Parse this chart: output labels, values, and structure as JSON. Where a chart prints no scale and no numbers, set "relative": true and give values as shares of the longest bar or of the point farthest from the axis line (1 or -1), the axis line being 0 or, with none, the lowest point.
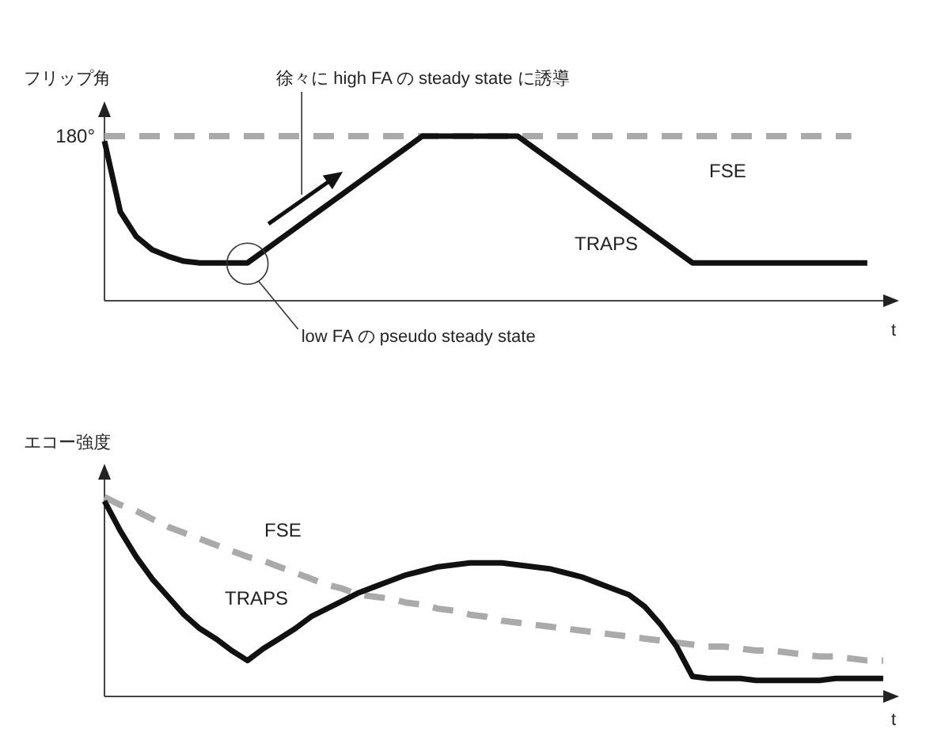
{
  "chart_data": [
    {
      "type": "line",
      "relative": true,
      "ylabel": "フリップ角",
      "xlabel": "t",
      "marker": "none",
      "categories": [
        null,
        null,
        null,
        null,
        null,
        null,
        null,
        null,
        null,
        null,
        null,
        null,
        null,
        null,
        null,
        null,
        null,
        null,
        null,
        null,
        null,
        null,
        null,
        null,
        null,
        null,
        null,
        null,
        null,
        null,
        null,
        null,
        null,
        null,
        null,
        null,
        null,
        null,
        null,
        null,
        null,
        null,
        null,
        null,
        null,
        null,
        null,
        null,
        null,
        null
      ],
      "series": [
        {
          "name": "FSE",
          "color": "#aaaaaa",
          "line_style": "dashed",
          "values": [
            1,
            1,
            1,
            1,
            1,
            1,
            1,
            1,
            1,
            1,
            1,
            1,
            1,
            1,
            1,
            1,
            1,
            1,
            1,
            1,
            1,
            1,
            1,
            1,
            1,
            1,
            1,
            1,
            1,
            1,
            1,
            1,
            1,
            1,
            1,
            1,
            1,
            1,
            1,
            1,
            1,
            1,
            1,
            1,
            1,
            1,
            1,
            1,
            null,
            null
          ]
        },
        {
          "name": "TRAPS",
          "color": "#111111",
          "line_style": "solid",
          "values": [
            0.97,
            0.54,
            0.39,
            0.31,
            0.27,
            0.24,
            0.23,
            0.23,
            0.23,
            0.23,
            0.3,
            0.37,
            0.44,
            0.51,
            0.58,
            0.65,
            0.72,
            0.79,
            0.86,
            0.93,
            1,
            1,
            1,
            1,
            1,
            1,
            1,
            0.93,
            0.86,
            0.79,
            0.72,
            0.65,
            0.58,
            0.51,
            0.44,
            0.37,
            0.3,
            0.23,
            0.23,
            0.23,
            0.23,
            0.23,
            0.23,
            0.23,
            0.23,
            0.23,
            0.23,
            0.23,
            0.23,
            null
          ]
        }
      ],
      "annotations": [
        "180°",
        "徐々に high FA の steady state に誘導",
        "low FA の pseudo steady state"
      ]
    },
    {
      "type": "line",
      "relative": true,
      "ylabel": "エコー強度",
      "xlabel": "t",
      "marker": "none",
      "categories": [
        null,
        null,
        null,
        null,
        null,
        null,
        null,
        null,
        null,
        null,
        null,
        null,
        null,
        null,
        null,
        null,
        null,
        null,
        null,
        null,
        null,
        null,
        null,
        null,
        null,
        null,
        null,
        null,
        null,
        null,
        null,
        null,
        null,
        null,
        null,
        null,
        null,
        null,
        null,
        null,
        null,
        null,
        null,
        null,
        null,
        null,
        null,
        null,
        null,
        null
      ],
      "series": [
        {
          "name": "FSE",
          "color": "#aaaaaa",
          "line_style": "dashed",
          "values": [
            1,
            0.96,
            0.93,
            0.89,
            0.85,
            0.82,
            0.79,
            0.76,
            0.73,
            0.7,
            0.68,
            0.65,
            0.62,
            0.59,
            0.56,
            0.54,
            0.51,
            0.5,
            0.49,
            0.47,
            0.46,
            0.44,
            0.43,
            0.41,
            0.4,
            0.38,
            0.37,
            0.36,
            0.35,
            0.34,
            0.33,
            0.32,
            0.31,
            0.3,
            0.29,
            0.28,
            0.27,
            0.26,
            0.25,
            0.25,
            0.24,
            0.23,
            0.23,
            0.22,
            0.21,
            0.2,
            0.2,
            0.19,
            0.18,
            0.18
          ]
        },
        {
          "name": "TRAPS",
          "color": "#111111",
          "line_style": "solid",
          "values": [
            0.98,
            0.83,
            0.7,
            0.59,
            0.5,
            0.41,
            0.34,
            0.29,
            0.23,
            0.18,
            0.24,
            0.29,
            0.34,
            0.4,
            0.44,
            0.48,
            0.52,
            0.55,
            0.58,
            0.61,
            0.63,
            0.65,
            0.66,
            0.67,
            0.67,
            0.67,
            0.66,
            0.65,
            0.64,
            0.62,
            0.6,
            0.57,
            0.54,
            0.51,
            0.45,
            0.36,
            0.25,
            0.1,
            0.09,
            0.09,
            0.09,
            0.08,
            0.08,
            0.08,
            0.08,
            0.08,
            0.09,
            0.09,
            0.09,
            0.09
          ]
        }
      ]
    }
  ]
}
